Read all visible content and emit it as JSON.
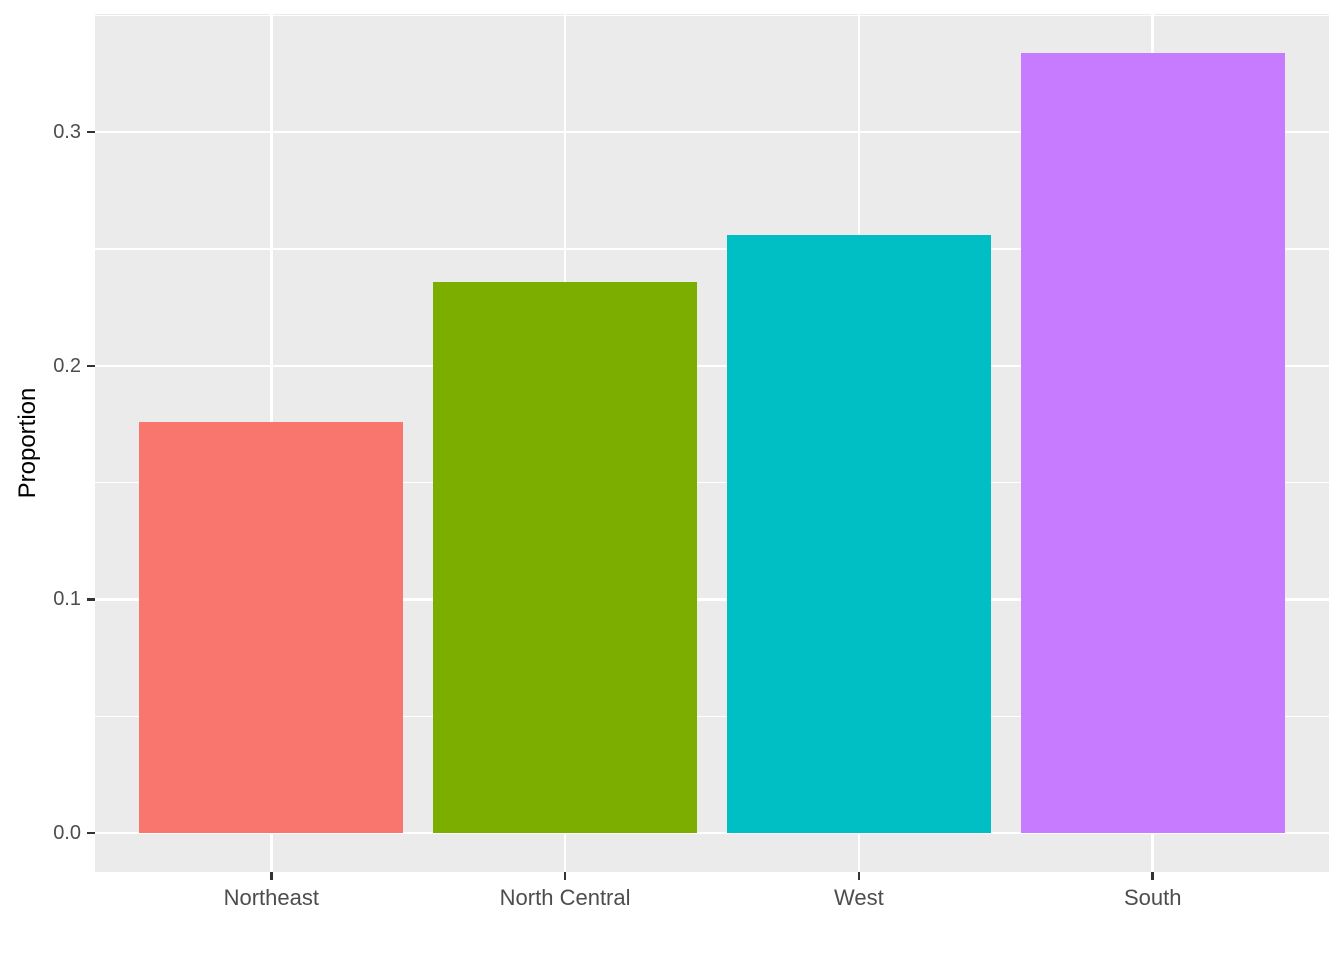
{
  "chart_data": {
    "type": "bar",
    "title": "",
    "xlabel": "",
    "ylabel": "Proportion",
    "categories": [
      "Northeast",
      "North Central",
      "West",
      "South"
    ],
    "values": [
      0.176,
      0.236,
      0.256,
      0.334
    ],
    "bar_colors": [
      "#F8766D",
      "#7CAE00",
      "#00BFC4",
      "#C77CFF"
    ],
    "ylim": [
      -0.0167,
      0.3506
    ],
    "y_major_ticks": [
      0.0,
      0.1,
      0.2,
      0.3
    ],
    "y_tick_labels": [
      "0.0",
      "0.1",
      "0.2",
      "0.3"
    ],
    "y_minor_ticks": [
      0.05,
      0.15,
      0.25,
      0.35
    ],
    "grid": "on",
    "legend_position": "none",
    "style": "ggplot2",
    "colors": {
      "page_background": "#FFFFFF",
      "panel_background": "#EBEBEB",
      "grid_major": "#FFFFFF",
      "grid_minor": "#FFFFFF",
      "tick_label": "#4D4D4D",
      "axis_title": "#000000",
      "tick_mark": "#333333"
    }
  }
}
